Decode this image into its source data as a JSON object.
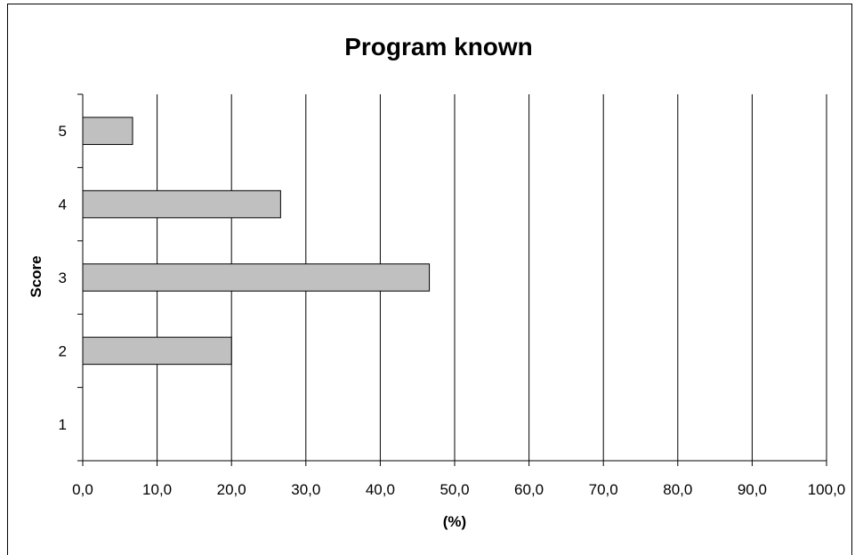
{
  "chart_data": {
    "type": "bar",
    "orientation": "horizontal",
    "title": "Program known",
    "xlabel": "(%)",
    "ylabel": "Score",
    "categories": [
      "1",
      "2",
      "3",
      "4",
      "5"
    ],
    "values": [
      0,
      20.0,
      46.6,
      26.6,
      6.7
    ],
    "xlim": [
      0,
      100
    ],
    "x_ticks": [
      "0,0",
      "10,0",
      "20,0",
      "30,0",
      "40,0",
      "50,0",
      "60,0",
      "70,0",
      "80,0",
      "90,0",
      "100,0"
    ],
    "grid": "vertical",
    "legend": "none",
    "colors": {
      "bar_fill": "#c0c0c0",
      "bar_stroke": "#000000",
      "grid": "#000000"
    }
  }
}
